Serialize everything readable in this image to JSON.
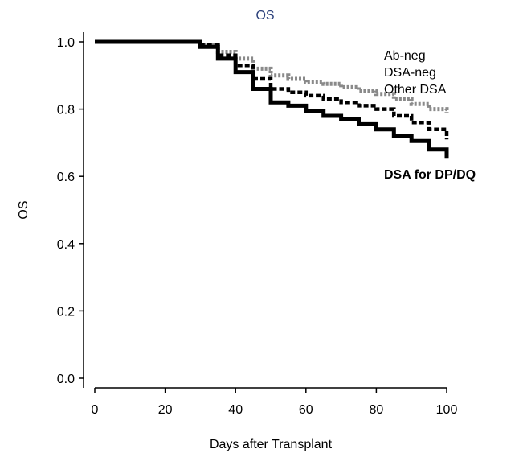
{
  "chart_data": {
    "type": "line",
    "title": "OS",
    "xlabel": "Days after Transplant",
    "ylabel": "OS",
    "xlim": [
      0,
      100
    ],
    "ylim": [
      0,
      1.0
    ],
    "x_ticks": [
      "0",
      "20",
      "40",
      "60",
      "80",
      "100"
    ],
    "y_ticks": [
      "0.0",
      "0.2",
      "0.4",
      "0.6",
      "0.8",
      "1.0"
    ],
    "grid": false,
    "colors": {
      "title": "#2a3f7a",
      "axis": "#000000"
    },
    "series": [
      {
        "name": "Ab-neg",
        "color": "#8a8a8a",
        "x": [
          0,
          26,
          30,
          35,
          40,
          45,
          50,
          55,
          60,
          65,
          70,
          75,
          80,
          85,
          90,
          95,
          100
        ],
        "y": [
          1.0,
          1.0,
          0.99,
          0.97,
          0.95,
          0.92,
          0.9,
          0.89,
          0.88,
          0.875,
          0.865,
          0.855,
          0.845,
          0.83,
          0.815,
          0.8,
          0.79
        ]
      },
      {
        "name": "DSA-neg",
        "color": "#000000",
        "x": [
          0,
          26,
          30,
          35,
          40,
          45,
          50,
          55,
          60,
          65,
          70,
          75,
          80,
          85,
          90,
          95,
          100
        ],
        "y": [
          1.0,
          1.0,
          0.99,
          0.96,
          0.93,
          0.89,
          0.86,
          0.85,
          0.84,
          0.83,
          0.82,
          0.81,
          0.8,
          0.78,
          0.76,
          0.74,
          0.71
        ]
      },
      {
        "name": "Other DSA",
        "color": "#000000",
        "x": [],
        "y": []
      },
      {
        "name": "DSA for DP/DQ",
        "color": "#000000",
        "x": [
          0,
          26,
          30,
          35,
          40,
          45,
          50,
          55,
          60,
          65,
          70,
          75,
          80,
          85,
          90,
          95,
          100
        ],
        "y": [
          1.0,
          1.0,
          0.985,
          0.95,
          0.91,
          0.86,
          0.82,
          0.81,
          0.795,
          0.78,
          0.77,
          0.755,
          0.74,
          0.72,
          0.705,
          0.68,
          0.655
        ]
      }
    ]
  }
}
